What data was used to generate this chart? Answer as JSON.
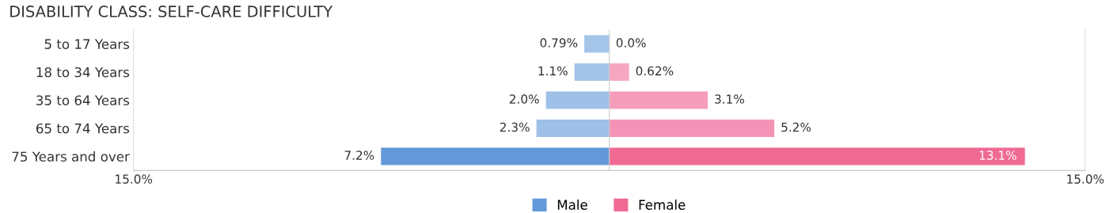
{
  "chart_data": {
    "type": "bar",
    "orientation": "horizontal",
    "title": "DISABILITY CLASS: SELF-CARE DIFFICULTY",
    "categories": [
      "5 to 17 Years",
      "18 to 34 Years",
      "35 to 64 Years",
      "65 to 74 Years",
      "75 Years and over"
    ],
    "series": [
      {
        "name": "Male",
        "color": "#6399d9",
        "colors": [
          "#a4c4e8",
          "#a4c4e8",
          "#a0c1e7",
          "#9ebfe7",
          "#6399d9"
        ],
        "values": [
          0.79,
          1.1,
          2.0,
          2.3,
          7.2
        ],
        "base": [
          -0.79,
          -1.1,
          -2.0,
          -2.3,
          -7.2
        ],
        "value_labels": [
          "0.79%",
          "1.1%",
          "2.0%",
          "2.3%",
          "7.2%"
        ]
      },
      {
        "name": "Female",
        "color": "#f06a94",
        "colors": [
          "#f7abc4",
          "#f6a6c1",
          "#f59dbb",
          "#f493b5",
          "#f06a94"
        ],
        "values": [
          0.0,
          0.62,
          3.1,
          5.2,
          13.1
        ],
        "value_labels": [
          "0.0%",
          "0.62%",
          "3.1%",
          "5.2%",
          "13.1%"
        ]
      }
    ],
    "xlim": [
      -15,
      15
    ],
    "xticks": [
      {
        "value": -15,
        "label": "15.0%"
      },
      {
        "value": 15,
        "label": "15.0%"
      }
    ],
    "legend": "bottom"
  }
}
